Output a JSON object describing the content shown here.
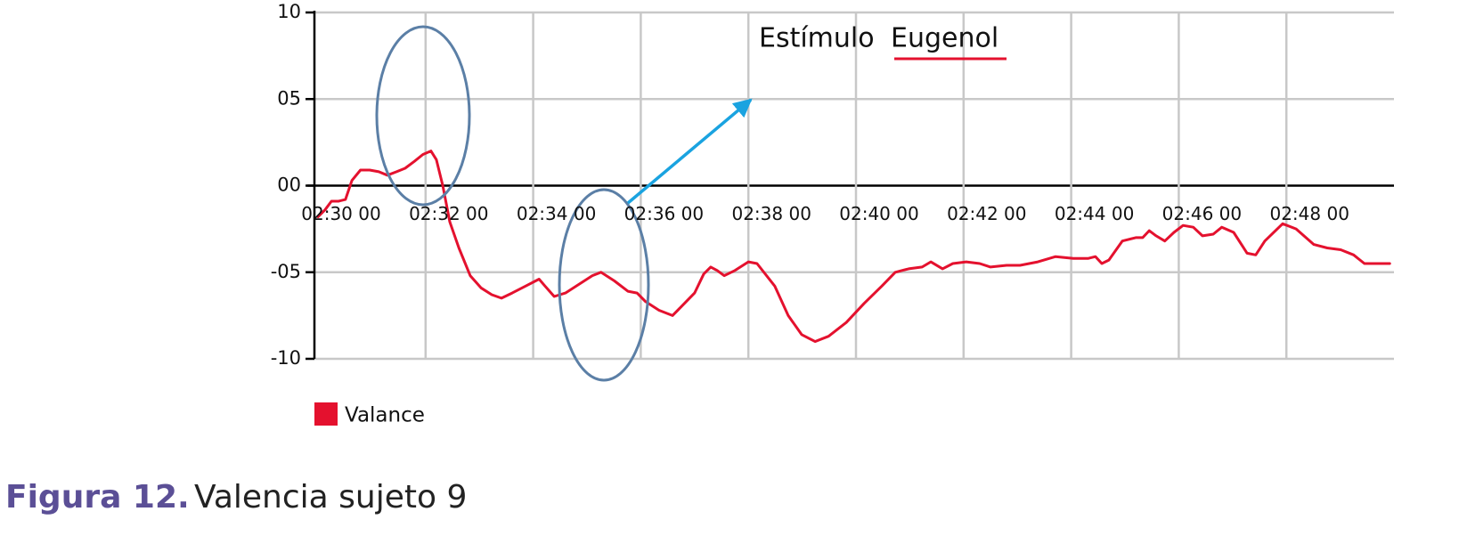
{
  "chart_data": {
    "type": "line",
    "x": [
      150.0,
      150.13,
      150.25,
      150.38,
      150.51,
      150.63,
      150.79,
      150.96,
      151.13,
      151.29,
      151.46,
      151.62,
      151.79,
      151.95,
      152.1,
      152.2,
      152.32,
      152.45,
      152.62,
      152.83,
      153.03,
      153.23,
      153.41,
      153.61,
      153.86,
      154.11,
      154.22,
      154.39,
      154.6,
      154.85,
      155.1,
      155.26,
      155.51,
      155.76,
      155.93,
      156.09,
      156.34,
      156.59,
      156.75,
      157.0,
      157.17,
      157.3,
      157.42,
      157.55,
      157.75,
      158.0,
      158.16,
      158.49,
      158.74,
      158.99,
      159.24,
      159.49,
      159.82,
      160.15,
      160.48,
      160.73,
      160.98,
      161.23,
      161.39,
      161.61,
      161.8,
      162.05,
      162.3,
      162.5,
      162.8,
      163.05,
      163.38,
      163.71,
      164.04,
      164.32,
      164.45,
      164.57,
      164.7,
      164.95,
      165.2,
      165.33,
      165.45,
      165.58,
      165.74,
      165.91,
      166.08,
      166.27,
      166.44,
      166.64,
      166.8,
      167.02,
      167.27,
      167.43,
      167.6,
      167.93,
      168.18,
      168.51,
      168.76,
      169.01,
      169.25,
      169.45,
      169.59,
      169.92
    ],
    "series": [
      {
        "name": "Valance",
        "color": "#e4112e",
        "values": [
          -1.8,
          -1.4,
          -0.9,
          -0.9,
          -0.8,
          0.3,
          0.9,
          0.9,
          0.8,
          0.6,
          0.8,
          1.0,
          1.4,
          1.8,
          2.0,
          1.5,
          0,
          -2.1,
          -3.6,
          -5.2,
          -5.9,
          -6.3,
          -6.5,
          -6.2,
          -5.8,
          -5.4,
          -5.8,
          -6.4,
          -6.2,
          -5.7,
          -5.2,
          -5.0,
          -5.5,
          -6.1,
          -6.2,
          -6.7,
          -7.2,
          -7.5,
          -7.0,
          -6.2,
          -5.1,
          -4.7,
          -4.9,
          -5.2,
          -4.9,
          -4.4,
          -4.5,
          -5.8,
          -7.5,
          -8.6,
          -9.0,
          -8.7,
          -7.9,
          -6.8,
          -5.8,
          -5.0,
          -4.8,
          -4.7,
          -4.4,
          -4.8,
          -4.5,
          -4.4,
          -4.5,
          -4.7,
          -4.6,
          -4.6,
          -4.4,
          -4.1,
          -4.2,
          -4.2,
          -4.1,
          -4.5,
          -4.3,
          -3.2,
          -3.0,
          -3.0,
          -2.6,
          -2.9,
          -3.2,
          -2.7,
          -2.3,
          -2.4,
          -2.9,
          -2.8,
          -2.4,
          -2.7,
          -3.9,
          -4.0,
          -3.2,
          -2.2,
          -2.5,
          -3.4,
          -3.6,
          -3.7,
          -4.0,
          -4.5,
          -4.5,
          -4.5
        ]
      }
    ],
    "xlim": [
      150,
      170
    ],
    "xticks": [
      {
        "value": 150,
        "label": "02:30 00"
      },
      {
        "value": 152,
        "label": "02:32 00"
      },
      {
        "value": 154,
        "label": "02:34 00"
      },
      {
        "value": 156,
        "label": "02:36 00"
      },
      {
        "value": 158,
        "label": "02:38 00"
      },
      {
        "value": 160,
        "label": "02:40 00"
      },
      {
        "value": 162,
        "label": "02:42 00"
      },
      {
        "value": 164,
        "label": "02:44 00"
      },
      {
        "value": 166,
        "label": "02:46 00"
      },
      {
        "value": 168,
        "label": "02:48 00"
      }
    ],
    "ylim": [
      -10,
      10
    ],
    "yticks": [
      10,
      {
        "value": 5,
        "label": "05"
      },
      {
        "value": 0,
        "label": "00"
      },
      {
        "value": -5,
        "label": "-05"
      },
      -10
    ],
    "grid": true,
    "annotation": {
      "text": "Estímulo",
      "stimulus": "Eugenol"
    },
    "caption_label": "Figura 12.",
    "caption": "Valencia sujeto 9"
  }
}
